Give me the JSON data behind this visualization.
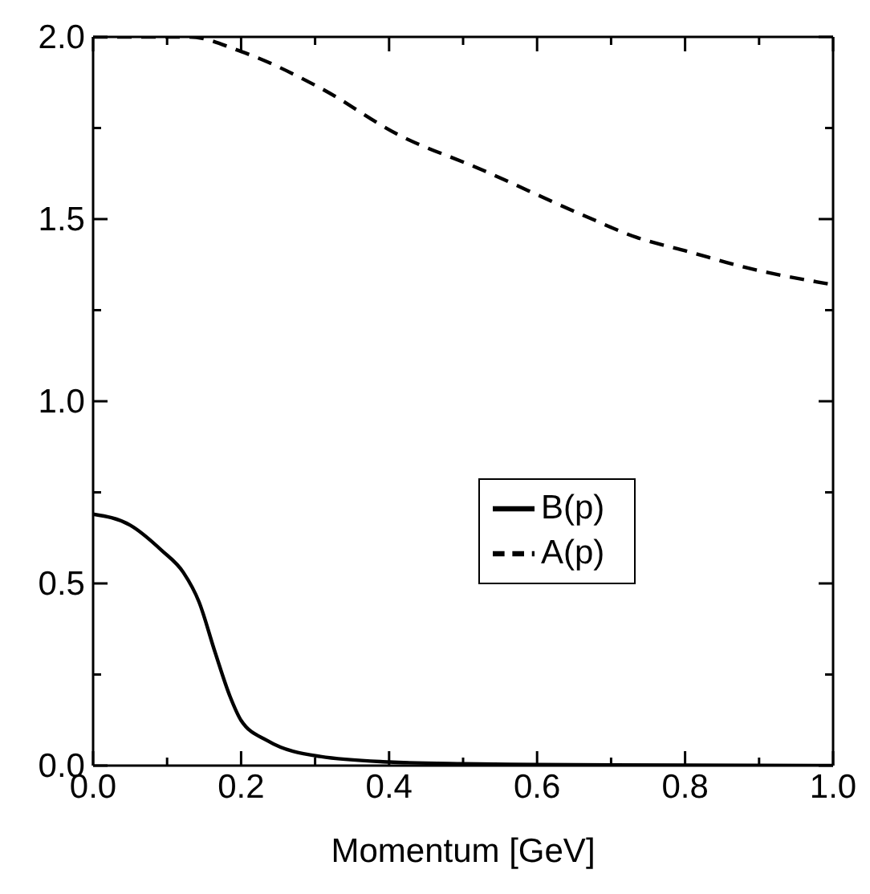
{
  "chart_data": {
    "type": "line",
    "xlabel": "Momentum [GeV]",
    "xlim": [
      0,
      1.0
    ],
    "ylim": [
      0,
      2.0
    ],
    "xticks": [
      {
        "value": 0,
        "label": "0.0"
      },
      {
        "value": 0.1,
        "label": null
      },
      {
        "value": 0.2,
        "label": "0.2"
      },
      {
        "value": 0.3,
        "label": null
      },
      {
        "value": 0.4,
        "label": "0.4"
      },
      {
        "value": 0.5,
        "label": null
      },
      {
        "value": 0.6,
        "label": "0.6"
      },
      {
        "value": 0.7,
        "label": null
      },
      {
        "value": 0.8,
        "label": "0.8"
      },
      {
        "value": 0.9,
        "label": null
      },
      {
        "value": 1.0,
        "label": "1.0"
      }
    ],
    "yticks": [
      {
        "value": 0,
        "label": "0.0"
      },
      {
        "value": 0.25,
        "label": null
      },
      {
        "value": 0.5,
        "label": "0.5"
      },
      {
        "value": 0.75,
        "label": null
      },
      {
        "value": 1.0,
        "label": "1.0"
      },
      {
        "value": 1.25,
        "label": null
      },
      {
        "value": 1.5,
        "label": "1.5"
      },
      {
        "value": 1.75,
        "label": null
      },
      {
        "value": 2.0,
        "label": "2.0"
      }
    ],
    "series": [
      {
        "name": "B(p)",
        "color": "#000000",
        "line_style": "solid",
        "x": [
          0,
          0.05,
          0.093,
          0.122,
          0.143,
          0.165,
          0.185,
          0.2,
          0.236,
          0.307,
          0.4,
          0.5,
          0.6,
          0.8,
          1.0
        ],
        "values": [
          0.69,
          0.66,
          0.59,
          0.53,
          0.45,
          0.31,
          0.19,
          0.124,
          0.068,
          0.025,
          0.01,
          0.005,
          0.003,
          0.001,
          0
        ]
      },
      {
        "name": "A(p)",
        "color": "#000000",
        "line_style": "dashed",
        "x": [
          0,
          0.07,
          0.13,
          0.2,
          0.307,
          0.414,
          0.52,
          0.663,
          0.734,
          0.806,
          0.876,
          1.0
        ],
        "values": [
          2.0,
          2.0,
          2.0,
          1.96,
          1.86,
          1.73,
          1.64,
          1.51,
          1.45,
          1.41,
          1.37,
          1.32
        ]
      }
    ],
    "legend": "center",
    "marker": "none"
  }
}
